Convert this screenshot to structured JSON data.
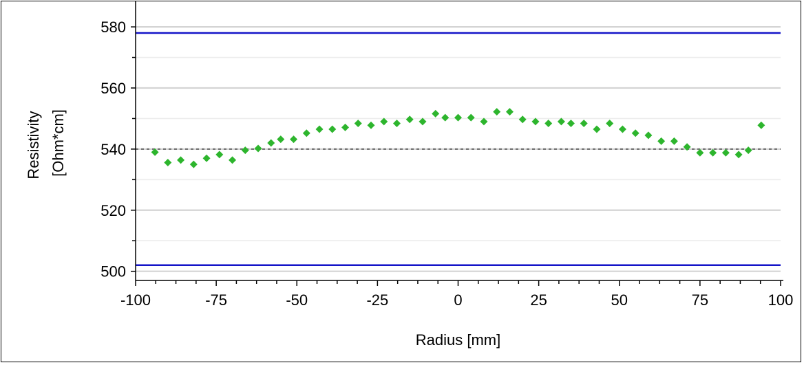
{
  "chart_data": {
    "type": "scatter",
    "title": "",
    "xlabel": "Radius [mm]",
    "ylabel_lines": [
      "Resistivity",
      "[Ohm*cm]"
    ],
    "xlim": [
      -100,
      100
    ],
    "ylim": [
      497,
      587
    ],
    "x_ticks": [
      -100,
      -75,
      -50,
      -25,
      0,
      25,
      50,
      75,
      100
    ],
    "y_ticks": [
      500,
      520,
      540,
      560,
      580
    ],
    "grid": true,
    "reference_lines": [
      {
        "y": 578,
        "style": "solid",
        "color": "#1414c8"
      },
      {
        "y": 502,
        "style": "solid",
        "color": "#1414c8"
      },
      {
        "y": 540,
        "style": "dotted",
        "color": "#777777"
      }
    ],
    "series": [
      {
        "marker": "diamond",
        "color": "#2db52d",
        "points": [
          [
            -94,
            539
          ],
          [
            -90,
            535.6
          ],
          [
            -86,
            536.4
          ],
          [
            -82,
            535
          ],
          [
            -78,
            537
          ],
          [
            -74,
            538.2
          ],
          [
            -70,
            536.4
          ],
          [
            -66,
            539.6
          ],
          [
            -62,
            540.2
          ],
          [
            -58,
            542
          ],
          [
            -55,
            543.2
          ],
          [
            -51,
            543.2
          ],
          [
            -47,
            545.2
          ],
          [
            -43,
            546.5
          ],
          [
            -39,
            546.5
          ],
          [
            -35,
            547.1
          ],
          [
            -31,
            548.4
          ],
          [
            -27,
            547.8
          ],
          [
            -23,
            549
          ],
          [
            -19,
            548.4
          ],
          [
            -15,
            549.7
          ],
          [
            -11,
            549
          ],
          [
            -7,
            551.6
          ],
          [
            -4,
            550.3
          ],
          [
            0,
            550.3
          ],
          [
            4,
            550.3
          ],
          [
            8,
            549
          ],
          [
            12,
            552.2
          ],
          [
            16,
            552.2
          ],
          [
            20,
            549.7
          ],
          [
            24,
            549
          ],
          [
            28,
            548.4
          ],
          [
            32,
            549
          ],
          [
            35,
            548.4
          ],
          [
            39,
            548.4
          ],
          [
            43,
            546.5
          ],
          [
            47,
            548.4
          ],
          [
            51,
            546.5
          ],
          [
            55,
            545.2
          ],
          [
            59,
            544.5
          ],
          [
            63,
            542.6
          ],
          [
            67,
            542.6
          ],
          [
            71,
            540.7
          ],
          [
            75,
            538.8
          ],
          [
            79,
            538.8
          ],
          [
            83,
            538.8
          ],
          [
            87,
            538.2
          ],
          [
            90,
            539.6
          ],
          [
            94,
            547.8
          ]
        ]
      }
    ]
  }
}
